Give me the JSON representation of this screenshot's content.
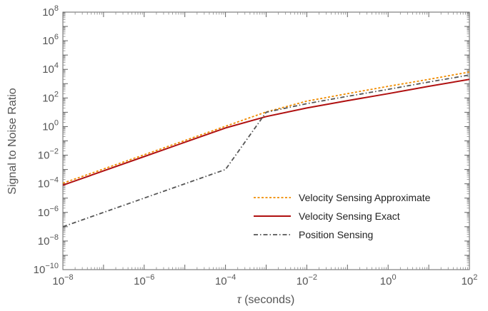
{
  "chart_data": {
    "type": "line",
    "title": "",
    "xlabel_symbol": "τ",
    "xlabel_unit": " (seconds)",
    "ylabel": "Signal to Noise Ratio",
    "x_scale": "log",
    "y_scale": "log",
    "xlim": [
      1e-08,
      100
    ],
    "ylim": [
      1e-10,
      100000000.0
    ],
    "x_ticks": [
      {
        "mant": "10",
        "exp": "−8",
        "value": 1e-08
      },
      {
        "mant": "10",
        "exp": "−6",
        "value": 1e-06
      },
      {
        "mant": "10",
        "exp": "−4",
        "value": 0.0001
      },
      {
        "mant": "10",
        "exp": "−2",
        "value": 0.01
      },
      {
        "mant": "10",
        "exp": "0",
        "value": 1
      },
      {
        "mant": "10",
        "exp": "2",
        "value": 100
      }
    ],
    "y_ticks": [
      {
        "mant": "10",
        "exp": "−10",
        "value": 1e-10
      },
      {
        "mant": "10",
        "exp": "−8",
        "value": 1e-08
      },
      {
        "mant": "10",
        "exp": "−6",
        "value": 1e-06
      },
      {
        "mant": "10",
        "exp": "−4",
        "value": 0.0001
      },
      {
        "mant": "10",
        "exp": "−2",
        "value": 0.01
      },
      {
        "mant": "10",
        "exp": "0",
        "value": 1
      },
      {
        "mant": "10",
        "exp": "2",
        "value": 100
      },
      {
        "mant": "10",
        "exp": "4",
        "value": 10000
      },
      {
        "mant": "10",
        "exp": "6",
        "value": 1000000
      },
      {
        "mant": "10",
        "exp": "8",
        "value": 100000000
      }
    ],
    "grid": false,
    "legend_position": "bottom-right",
    "series": [
      {
        "name": "Velocity Sensing Approximate",
        "color": "#f08c00",
        "style": "dotted",
        "x": [
          1e-08,
          1e-06,
          0.0001,
          0.001,
          0.01,
          0.1,
          1,
          10,
          100
        ],
        "y": [
          0.00011,
          0.0107,
          1.05,
          10.5,
          60,
          200,
          650,
          2000,
          6500
        ]
      },
      {
        "name": "Velocity Sensing Exact",
        "color": "#b01010",
        "style": "solid",
        "x": [
          1e-08,
          1e-06,
          0.0001,
          0.001,
          0.01,
          0.1,
          1,
          10,
          100
        ],
        "y": [
          8e-05,
          0.008,
          0.8,
          5,
          20,
          65,
          200,
          650,
          2000
        ]
      },
      {
        "name": "Position Sensing",
        "color": "#555555",
        "style": "dashdot",
        "x": [
          1e-08,
          1e-06,
          0.0001,
          0.001,
          0.01,
          0.1,
          1,
          10,
          100
        ],
        "y": [
          1e-07,
          1e-05,
          0.001,
          10,
          40,
          130,
          400,
          1300,
          4000
        ]
      }
    ]
  }
}
